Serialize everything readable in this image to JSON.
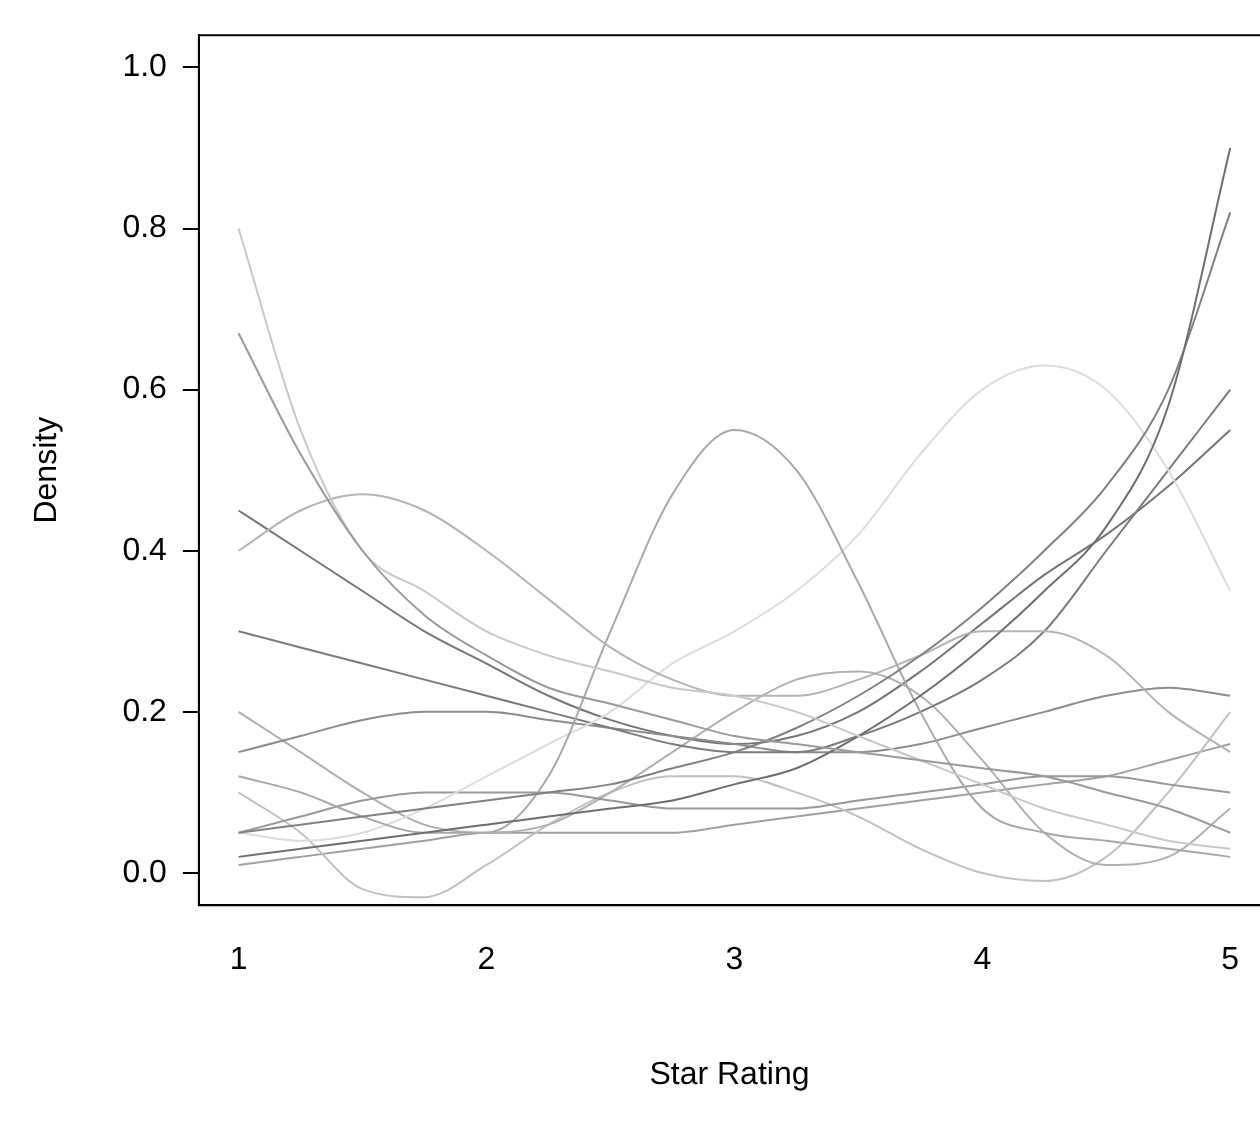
{
  "chart_data": {
    "type": "line",
    "xlabel": "Star Rating",
    "ylabel": "Density",
    "x": [
      1,
      1.25,
      1.5,
      1.75,
      2,
      2.25,
      2.5,
      2.75,
      3,
      3.25,
      3.5,
      3.75,
      4,
      4.25,
      4.5,
      4.75,
      5
    ],
    "xlim": [
      0.84,
      5.12
    ],
    "xticks": [
      1,
      2,
      3,
      4,
      5
    ],
    "ylim": [
      -0.04,
      1.04
    ],
    "yticks": [
      {
        "value": 0,
        "label": "0.0"
      },
      0.2,
      0.4,
      0.6,
      0.8,
      {
        "value": 1,
        "label": "1.0"
      }
    ],
    "grid": false,
    "legend": false,
    "marker": "none",
    "line_style": "solid",
    "series": [
      {
        "color": "#9a9a9a",
        "values": [
          0.67,
          0.52,
          0.4,
          0.32,
          0.27,
          0.23,
          0.21,
          0.19,
          0.17,
          0.16,
          0.15,
          0.14,
          0.13,
          0.12,
          0.1,
          0.08,
          0.05
        ]
      },
      {
        "color": "#c8c8c8",
        "values": [
          0.8,
          0.55,
          0.4,
          0.35,
          0.3,
          0.27,
          0.25,
          0.23,
          0.22,
          0.2,
          0.17,
          0.14,
          0.11,
          0.08,
          0.06,
          0.04,
          0.03
        ]
      },
      {
        "color": "#6e6e6e",
        "values": [
          0.02,
          0.03,
          0.04,
          0.05,
          0.06,
          0.07,
          0.08,
          0.09,
          0.11,
          0.13,
          0.17,
          0.22,
          0.28,
          0.35,
          0.43,
          0.58,
          0.9
        ]
      },
      {
        "color": "#808080",
        "values": [
          0.05,
          0.06,
          0.07,
          0.08,
          0.09,
          0.1,
          0.11,
          0.13,
          0.15,
          0.18,
          0.22,
          0.27,
          0.33,
          0.4,
          0.48,
          0.6,
          0.82
        ]
      },
      {
        "color": "#a8a8a8",
        "values": [
          0.12,
          0.1,
          0.07,
          0.05,
          0.05,
          0.12,
          0.3,
          0.47,
          0.55,
          0.5,
          0.36,
          0.2,
          0.08,
          0.05,
          0.04,
          0.03,
          0.02
        ]
      },
      {
        "color": "#b4b4b4",
        "values": [
          0.4,
          0.45,
          0.47,
          0.45,
          0.4,
          0.34,
          0.28,
          0.24,
          0.22,
          0.22,
          0.24,
          0.27,
          0.3,
          0.3,
          0.27,
          0.2,
          0.15
        ]
      },
      {
        "color": "#dcdcdc",
        "values": [
          0.05,
          0.04,
          0.05,
          0.08,
          0.12,
          0.16,
          0.2,
          0.26,
          0.3,
          0.35,
          0.42,
          0.52,
          0.6,
          0.63,
          0.6,
          0.5,
          0.35
        ]
      },
      {
        "color": "#7a7a7a",
        "values": [
          0.3,
          0.28,
          0.26,
          0.24,
          0.22,
          0.2,
          0.18,
          0.16,
          0.15,
          0.15,
          0.17,
          0.2,
          0.24,
          0.3,
          0.4,
          0.5,
          0.6
        ]
      },
      {
        "color": "#8c8c8c",
        "values": [
          0.15,
          0.17,
          0.19,
          0.2,
          0.2,
          0.19,
          0.18,
          0.17,
          0.16,
          0.15,
          0.15,
          0.16,
          0.18,
          0.2,
          0.22,
          0.23,
          0.22
        ]
      },
      {
        "color": "#999999",
        "values": [
          0.05,
          0.07,
          0.09,
          0.1,
          0.1,
          0.1,
          0.09,
          0.08,
          0.08,
          0.08,
          0.09,
          0.1,
          0.11,
          0.12,
          0.12,
          0.11,
          0.1
        ]
      },
      {
        "color": "#b0b0b0",
        "values": [
          0.2,
          0.15,
          0.1,
          0.06,
          0.05,
          0.06,
          0.1,
          0.15,
          0.2,
          0.24,
          0.25,
          0.22,
          0.14,
          0.05,
          0.01,
          0.02,
          0.08
        ]
      },
      {
        "color": "#c0c0c0",
        "values": [
          0.1,
          0.05,
          -0.02,
          -0.03,
          0.01,
          0.06,
          0.1,
          0.12,
          0.12,
          0.1,
          0.07,
          0.03,
          0.0,
          -0.01,
          0.02,
          0.1,
          0.2
        ]
      },
      {
        "color": "#757575",
        "values": [
          0.45,
          0.4,
          0.35,
          0.3,
          0.26,
          0.22,
          0.19,
          0.17,
          0.16,
          0.17,
          0.2,
          0.25,
          0.31,
          0.37,
          0.42,
          0.48,
          0.55
        ]
      },
      {
        "color": "#a0a0a0",
        "values": [
          0.01,
          0.02,
          0.03,
          0.04,
          0.05,
          0.05,
          0.05,
          0.05,
          0.06,
          0.07,
          0.08,
          0.09,
          0.1,
          0.11,
          0.12,
          0.14,
          0.16
        ]
      }
    ]
  }
}
